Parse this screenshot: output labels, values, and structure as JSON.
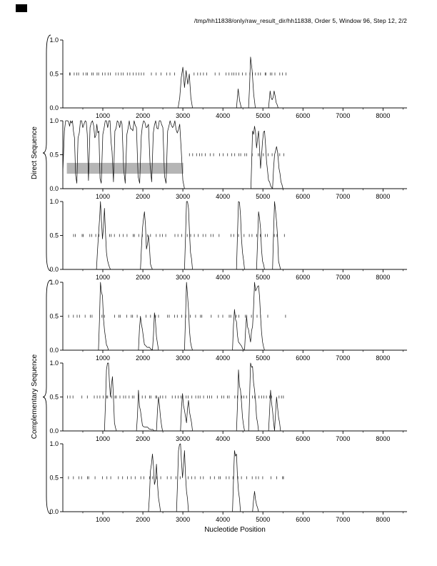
{
  "title": "/tmp/hh11838/only/raw_result_dir/hh11838, Order 5, Window 96, Step 12, 2/2",
  "axis": {
    "xlabel": "Nucleotide Position",
    "xlim": [
      0,
      8600
    ],
    "ylim": [
      0,
      1
    ],
    "x_ticks": [
      1000,
      2000,
      3000,
      4000,
      5000,
      6000,
      7000,
      8000
    ],
    "x_minor_step": 500,
    "y_ticks": [
      0,
      0.5,
      1
    ],
    "y_tick_labels": [
      "0.0",
      "0.5",
      "1.0"
    ]
  },
  "groups": [
    {
      "label": "Direct Sequence"
    },
    {
      "label": "Complementary Sequence"
    }
  ],
  "colors": {
    "curve": "#111111",
    "marks": "#333333",
    "region": "#b5b5b5",
    "axis": "#000000"
  },
  "chart_data": {
    "type": "line",
    "title": "/tmp/hh11838/only/raw_result_dir/hh11838, Order 5, Window 96, Step 12, 2/2",
    "xlabel": "Nucleotide Position",
    "xlim": [
      0,
      8600
    ],
    "ylim": [
      0,
      1
    ],
    "panels": [
      {
        "name": "direct-frame-1",
        "curve": [
          [
            0,
            0
          ],
          [
            2880,
            0
          ],
          [
            2920,
            0.15
          ],
          [
            2960,
            0.45
          ],
          [
            3000,
            0.6
          ],
          [
            3040,
            0.3
          ],
          [
            3080,
            0.55
          ],
          [
            3120,
            0.35
          ],
          [
            3160,
            0.5
          ],
          [
            3200,
            0.15
          ],
          [
            3240,
            0
          ],
          [
            4340,
            0
          ],
          [
            4380,
            0.28
          ],
          [
            4420,
            0.1
          ],
          [
            4460,
            0
          ],
          [
            4640,
            0
          ],
          [
            4690,
            0.75
          ],
          [
            4730,
            0.55
          ],
          [
            4770,
            0.2
          ],
          [
            4810,
            0
          ],
          [
            5140,
            0
          ],
          [
            5180,
            0.25
          ],
          [
            5230,
            0.12
          ],
          [
            5280,
            0.25
          ],
          [
            5330,
            0.08
          ],
          [
            5380,
            0
          ],
          [
            8600,
            0
          ]
        ],
        "mark_runs": [
          [
            140,
            2930,
            70
          ],
          [
            3300,
            5600,
            75
          ]
        ],
        "region": null
      },
      {
        "name": "direct-frame-2",
        "curve": [
          [
            0,
            0.25
          ],
          [
            40,
            0.85
          ],
          [
            100,
            1
          ],
          [
            170,
            0.92
          ],
          [
            240,
            1
          ],
          [
            290,
            0.75
          ],
          [
            320,
            0.2
          ],
          [
            350,
            0.08
          ],
          [
            380,
            0.75
          ],
          [
            440,
            1
          ],
          [
            500,
            0.9
          ],
          [
            560,
            1
          ],
          [
            610,
            0.8
          ],
          [
            640,
            0.12
          ],
          [
            680,
            0.9
          ],
          [
            740,
            1
          ],
          [
            800,
            0.75
          ],
          [
            850,
            0.95
          ],
          [
            900,
            0.85
          ],
          [
            930,
            0.15
          ],
          [
            960,
            0.08
          ],
          [
            1000,
            0.8
          ],
          [
            1060,
            1
          ],
          [
            1120,
            0.9
          ],
          [
            1180,
            1
          ],
          [
            1230,
            0.55
          ],
          [
            1265,
            0.1
          ],
          [
            1300,
            0.85
          ],
          [
            1360,
            1
          ],
          [
            1420,
            0.9
          ],
          [
            1480,
            0.95
          ],
          [
            1520,
            0.28
          ],
          [
            1560,
            0.08
          ],
          [
            1600,
            0.8
          ],
          [
            1660,
            1
          ],
          [
            1720,
            0.88
          ],
          [
            1780,
            1
          ],
          [
            1840,
            0.9
          ],
          [
            1880,
            0.18
          ],
          [
            1920,
            0.08
          ],
          [
            1960,
            0.78
          ],
          [
            2020,
            1
          ],
          [
            2080,
            0.9
          ],
          [
            2140,
            0.95
          ],
          [
            2180,
            0.35
          ],
          [
            2220,
            0.1
          ],
          [
            2260,
            0.82
          ],
          [
            2320,
            1
          ],
          [
            2380,
            0.88
          ],
          [
            2440,
            1
          ],
          [
            2500,
            0.9
          ],
          [
            2540,
            0.18
          ],
          [
            2580,
            0.08
          ],
          [
            2620,
            0.85
          ],
          [
            2680,
            1
          ],
          [
            2740,
            0.9
          ],
          [
            2800,
            1
          ],
          [
            2860,
            0.82
          ],
          [
            2920,
            0.95
          ],
          [
            2960,
            0.55
          ],
          [
            3000,
            0.12
          ],
          [
            3040,
            0
          ],
          [
            4700,
            0
          ],
          [
            4740,
            0.85
          ],
          [
            4790,
            0.92
          ],
          [
            4840,
            0.6
          ],
          [
            4890,
            0.85
          ],
          [
            4940,
            0.3
          ],
          [
            4990,
            0.7
          ],
          [
            5040,
            0.85
          ],
          [
            5090,
            0.4
          ],
          [
            5140,
            0.12
          ],
          [
            5240,
            0
          ],
          [
            5290,
            0.5
          ],
          [
            5340,
            0.62
          ],
          [
            5400,
            0.3
          ],
          [
            5450,
            0.1
          ],
          [
            5500,
            0
          ],
          [
            8600,
            0
          ]
        ],
        "mark_runs": [
          [
            3180,
            5520,
            80
          ]
        ],
        "region": {
          "x1": 100,
          "x2": 3010,
          "y1": 0.22,
          "y2": 0.38
        }
      },
      {
        "name": "direct-frame-3",
        "curve": [
          [
            0,
            0
          ],
          [
            840,
            0
          ],
          [
            890,
            0.5
          ],
          [
            940,
            1
          ],
          [
            990,
            0.45
          ],
          [
            1040,
            0.9
          ],
          [
            1090,
            0.25
          ],
          [
            1140,
            0.08
          ],
          [
            1190,
            0
          ],
          [
            1940,
            0
          ],
          [
            1990,
            0.6
          ],
          [
            2040,
            0.85
          ],
          [
            2090,
            0.3
          ],
          [
            2140,
            0.5
          ],
          [
            2190,
            0.08
          ],
          [
            2240,
            0
          ],
          [
            3040,
            0
          ],
          [
            3090,
            1
          ],
          [
            3140,
            0.9
          ],
          [
            3190,
            0.25
          ],
          [
            3240,
            0
          ],
          [
            4340,
            0
          ],
          [
            4390,
            1
          ],
          [
            4440,
            0.8
          ],
          [
            4490,
            0.25
          ],
          [
            4540,
            0
          ],
          [
            4840,
            0
          ],
          [
            4890,
            0.85
          ],
          [
            4940,
            0.6
          ],
          [
            4990,
            0.12
          ],
          [
            5040,
            0
          ],
          [
            5240,
            0
          ],
          [
            5290,
            1
          ],
          [
            5340,
            0.7
          ],
          [
            5390,
            0.12
          ],
          [
            5440,
            0
          ],
          [
            8600,
            0
          ]
        ],
        "mark_runs": [
          [
            150,
            5600,
            98
          ]
        ],
        "region": null
      },
      {
        "name": "complementary-frame-1",
        "curve": [
          [
            0,
            0
          ],
          [
            890,
            0
          ],
          [
            940,
            1
          ],
          [
            990,
            0.8
          ],
          [
            1040,
            0.3
          ],
          [
            1090,
            0.08
          ],
          [
            1140,
            0
          ],
          [
            1890,
            0
          ],
          [
            1940,
            0.5
          ],
          [
            1990,
            0.3
          ],
          [
            2040,
            0.08
          ],
          [
            2240,
            0
          ],
          [
            2290,
            0.55
          ],
          [
            2340,
            0.2
          ],
          [
            2390,
            0
          ],
          [
            3040,
            0
          ],
          [
            3090,
            1
          ],
          [
            3140,
            0.6
          ],
          [
            3190,
            0.12
          ],
          [
            3240,
            0
          ],
          [
            4240,
            0
          ],
          [
            4290,
            0.6
          ],
          [
            4340,
            0.42
          ],
          [
            4390,
            0.12
          ],
          [
            4540,
            0
          ],
          [
            4590,
            0.5
          ],
          [
            4640,
            0.3
          ],
          [
            4690,
            0.12
          ],
          [
            4740,
            0.35
          ],
          [
            4790,
            1
          ],
          [
            4840,
            0.9
          ],
          [
            4890,
            0.95
          ],
          [
            4940,
            0.5
          ],
          [
            4990,
            0.12
          ],
          [
            5040,
            0
          ],
          [
            8600,
            0
          ]
        ],
        "mark_runs": [
          [
            140,
            5560,
            102
          ]
        ],
        "region": null
      },
      {
        "name": "complementary-frame-2",
        "curve": [
          [
            0,
            0
          ],
          [
            1040,
            0
          ],
          [
            1090,
            0.9
          ],
          [
            1140,
            1
          ],
          [
            1190,
            0.5
          ],
          [
            1240,
            0.8
          ],
          [
            1290,
            0.12
          ],
          [
            1340,
            0
          ],
          [
            1840,
            0
          ],
          [
            1890,
            0.6
          ],
          [
            1940,
            0.3
          ],
          [
            1990,
            0.08
          ],
          [
            2340,
            0
          ],
          [
            2390,
            0.5
          ],
          [
            2440,
            0.2
          ],
          [
            2490,
            0
          ],
          [
            2940,
            0
          ],
          [
            2990,
            0.55
          ],
          [
            3040,
            0.3
          ],
          [
            3090,
            0.12
          ],
          [
            3140,
            0.45
          ],
          [
            3190,
            0.2
          ],
          [
            3240,
            0
          ],
          [
            4340,
            0
          ],
          [
            4390,
            0.9
          ],
          [
            4440,
            0.6
          ],
          [
            4490,
            0.2
          ],
          [
            4540,
            0
          ],
          [
            4640,
            0
          ],
          [
            4690,
            1
          ],
          [
            4740,
            0.95
          ],
          [
            4790,
            0.6
          ],
          [
            4840,
            0.2
          ],
          [
            4890,
            0
          ],
          [
            5140,
            0
          ],
          [
            5190,
            0.6
          ],
          [
            5240,
            0.3
          ],
          [
            5290,
            0
          ],
          [
            5340,
            0.5
          ],
          [
            5390,
            0.2
          ],
          [
            5440,
            0
          ],
          [
            8600,
            0
          ]
        ],
        "mark_runs": [
          [
            130,
            5600,
            72
          ]
        ],
        "region": null
      },
      {
        "name": "complementary-frame-3",
        "curve": [
          [
            0,
            0
          ],
          [
            2140,
            0
          ],
          [
            2190,
            0.6
          ],
          [
            2240,
            0.85
          ],
          [
            2290,
            0.4
          ],
          [
            2340,
            0.7
          ],
          [
            2390,
            0.2
          ],
          [
            2440,
            0
          ],
          [
            2840,
            0
          ],
          [
            2890,
            0.9
          ],
          [
            2940,
            1
          ],
          [
            2990,
            0.5
          ],
          [
            3040,
            0.9
          ],
          [
            3090,
            0.3
          ],
          [
            3140,
            0
          ],
          [
            4240,
            0
          ],
          [
            4290,
            0.9
          ],
          [
            4340,
            0.85
          ],
          [
            4390,
            0.3
          ],
          [
            4440,
            0
          ],
          [
            4740,
            0
          ],
          [
            4790,
            0.3
          ],
          [
            4840,
            0.1
          ],
          [
            4890,
            0
          ],
          [
            8600,
            0
          ]
        ],
        "mark_runs": [
          [
            150,
            5590,
            106
          ]
        ],
        "region": null
      }
    ]
  }
}
